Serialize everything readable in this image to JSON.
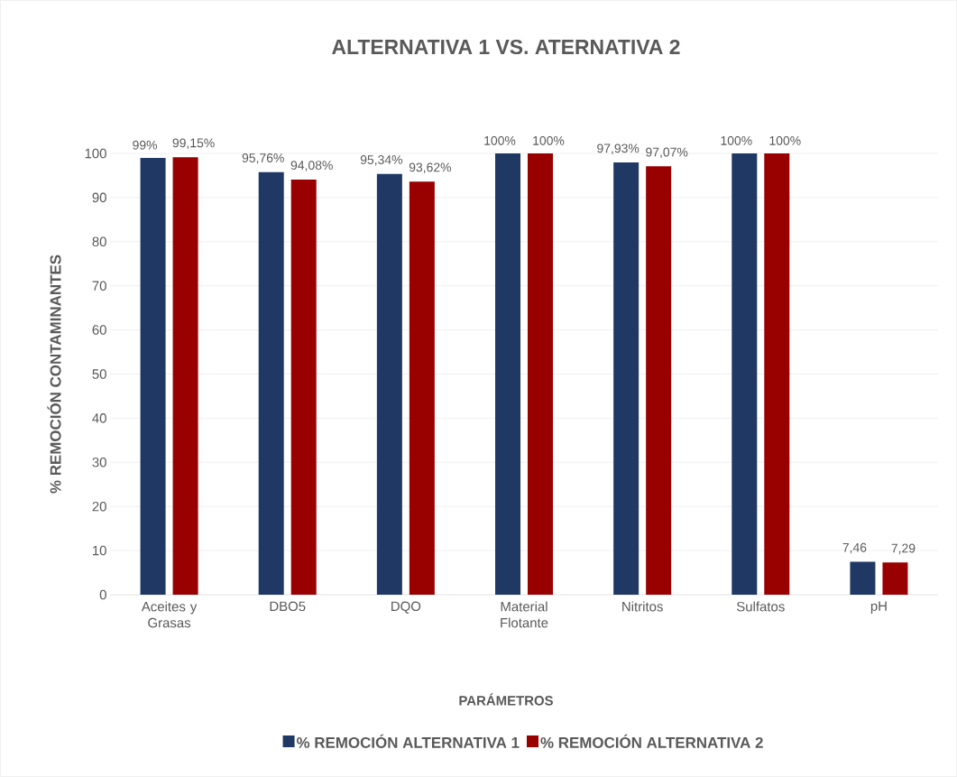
{
  "chart_data": {
    "type": "bar",
    "title": "ALTERNATIVA 1 VS. ATERNATIVA 2",
    "xlabel": "PARÁMETROS",
    "ylabel": "% REMOCIÓN CONTAMINANTES",
    "categories": [
      "Aceites y Grasas",
      "DBO5",
      "DQO",
      "Material Flotante",
      "Nitritos",
      "Sulfatos",
      "pH"
    ],
    "series": [
      {
        "name": "% REMOCIÓN ALTERNATIVA 1",
        "color": "#203864",
        "values": [
          99,
          95.76,
          95.34,
          100,
          97.93,
          100,
          7.46
        ],
        "value_labels": [
          "99%",
          "95,76%",
          "95,34%",
          "100%",
          "97,93%",
          "100%",
          "7,46"
        ]
      },
      {
        "name": "% REMOCIÓN ALTERNATIVA 2",
        "color": "#990000",
        "values": [
          99.15,
          94.08,
          93.62,
          100,
          97.07,
          100,
          7.29
        ],
        "value_labels": [
          "99,15%",
          "94,08%",
          "93,62%",
          "100%",
          "97,07%",
          "100%",
          "7,29"
        ]
      }
    ],
    "ylim": [
      0,
      100
    ],
    "yticks": [
      0,
      10,
      20,
      30,
      40,
      50,
      60,
      70,
      80,
      90,
      100
    ],
    "grid": "y",
    "legend": "bottom"
  }
}
